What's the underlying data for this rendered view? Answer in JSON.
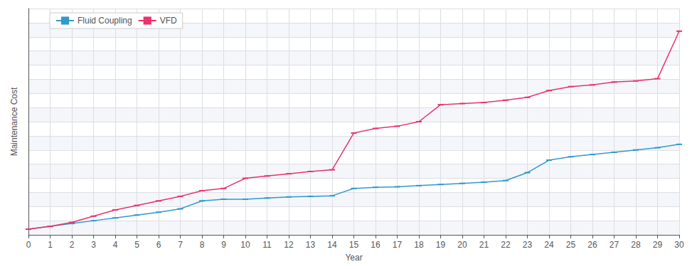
{
  "chart_data": {
    "type": "line",
    "xlabel": "Year",
    "ylabel": "Maintenance Cost",
    "x": [
      0,
      1,
      2,
      3,
      4,
      5,
      6,
      7,
      8,
      9,
      10,
      11,
      12,
      13,
      14,
      15,
      16,
      17,
      18,
      19,
      20,
      21,
      22,
      23,
      24,
      25,
      26,
      27,
      28,
      29,
      30
    ],
    "series": [
      {
        "name": "Fluid Coupling",
        "color": "#3399cc",
        "values": [
          0.01,
          0.015,
          0.02,
          0.025,
          0.03,
          0.035,
          0.04,
          0.046,
          0.06,
          0.063,
          0.063,
          0.065,
          0.067,
          0.068,
          0.069,
          0.082,
          0.084,
          0.085,
          0.087,
          0.089,
          0.091,
          0.093,
          0.096,
          0.11,
          0.132,
          0.138,
          0.142,
          0.146,
          0.15,
          0.154,
          0.16
        ]
      },
      {
        "name": "VFD",
        "color": "#e8336e",
        "values": [
          0.01,
          0.015,
          0.022,
          0.033,
          0.044,
          0.052,
          0.06,
          0.068,
          0.078,
          0.082,
          0.1,
          0.104,
          0.108,
          0.112,
          0.115,
          0.18,
          0.188,
          0.192,
          0.2,
          0.23,
          0.232,
          0.234,
          0.238,
          0.243,
          0.255,
          0.262,
          0.265,
          0.27,
          0.272,
          0.276,
          0.36
        ]
      }
    ],
    "xlim": [
      0,
      30
    ],
    "xticks": [
      0,
      1,
      2,
      3,
      4,
      5,
      6,
      7,
      8,
      9,
      10,
      11,
      12,
      13,
      14,
      15,
      16,
      17,
      18,
      19,
      20,
      21,
      22,
      23,
      24,
      25,
      26,
      27,
      28,
      29,
      30
    ],
    "ylim": [
      0,
      0.4
    ],
    "yticks": [
      0,
      0.025,
      0.05,
      0.075,
      0.1,
      0.125,
      0.15,
      0.175,
      0.2,
      0.225,
      0.25,
      0.275,
      0.3,
      0.325,
      0.35,
      0.375,
      0.4
    ],
    "grid": true,
    "legend": "upper left",
    "tick_labels": "x",
    "marker": "dash"
  }
}
